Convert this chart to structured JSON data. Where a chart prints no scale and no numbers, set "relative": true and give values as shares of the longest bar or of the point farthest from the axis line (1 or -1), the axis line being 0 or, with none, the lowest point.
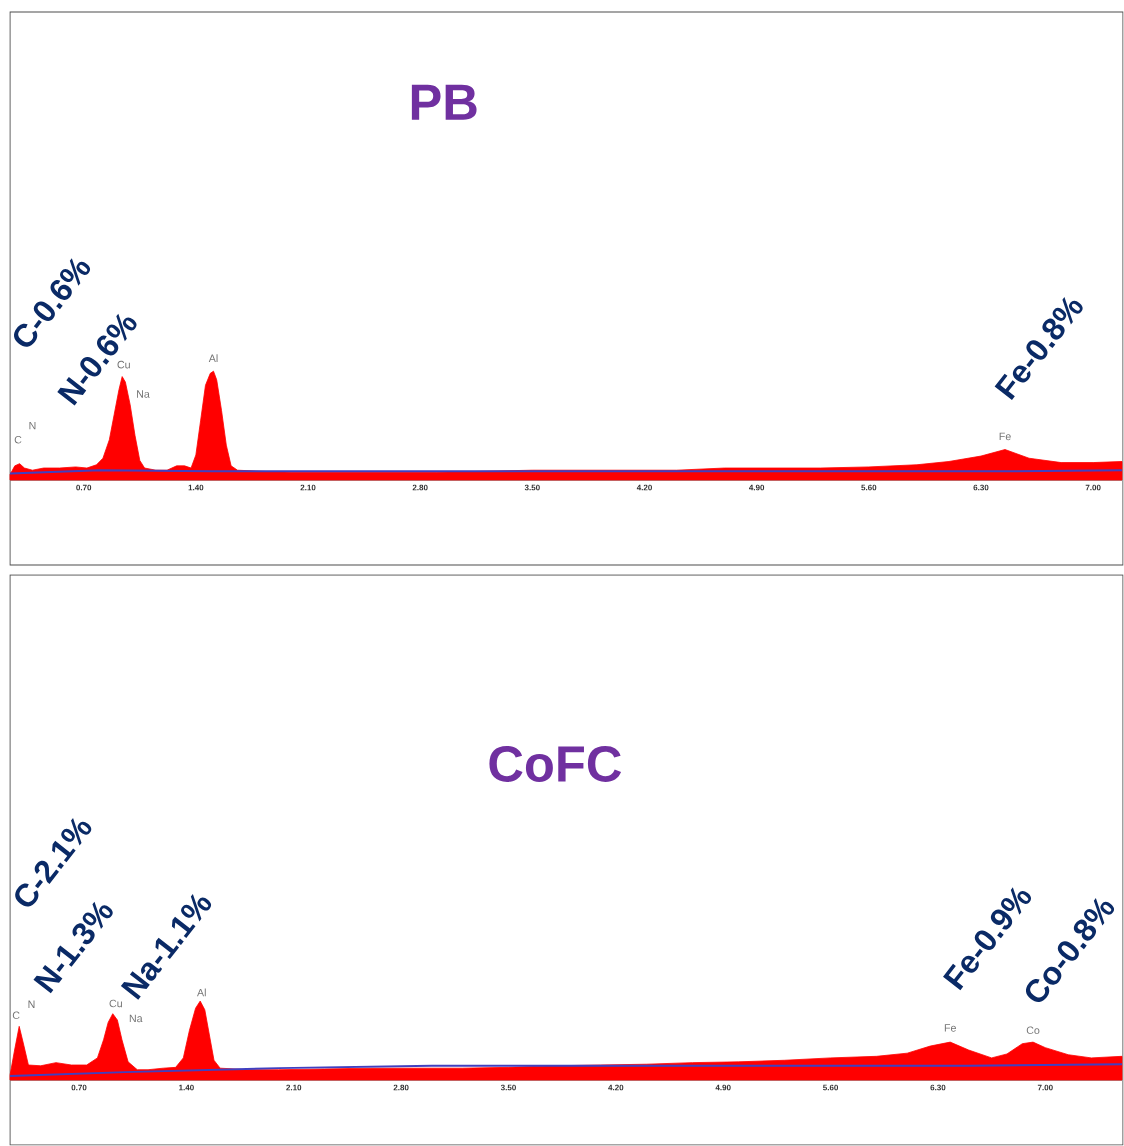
{
  "chart_data": [
    {
      "type": "area",
      "title": "PB",
      "relative": true,
      "xlim": [
        0.24,
        7.18
      ],
      "xticks": [
        {
          "value": 0.7,
          "label": "0.70"
        },
        {
          "value": 1.4,
          "label": "1.40"
        },
        {
          "value": 2.1,
          "label": "2.10"
        },
        {
          "value": 2.8,
          "label": "2.80"
        },
        {
          "value": 3.5,
          "label": "3.50"
        },
        {
          "value": 4.2,
          "label": "4.20"
        },
        {
          "value": 4.9,
          "label": "4.90"
        },
        {
          "value": 5.6,
          "label": "5.60"
        },
        {
          "value": 6.3,
          "label": "6.30"
        },
        {
          "value": 7.0,
          "label": "7.00"
        }
      ],
      "series": [
        {
          "color": "#ff0000",
          "x": [
            0.24,
            0.27,
            0.3,
            0.33,
            0.38,
            0.45,
            0.55,
            0.65,
            0.72,
            0.78,
            0.82,
            0.86,
            0.89,
            0.92,
            0.94,
            0.96,
            0.99,
            1.02,
            1.05,
            1.08,
            1.15,
            1.22,
            1.28,
            1.33,
            1.37,
            1.4,
            1.43,
            1.46,
            1.49,
            1.51,
            1.53,
            1.56,
            1.59,
            1.62,
            1.66,
            1.8,
            2.0,
            2.3,
            2.6,
            2.9,
            3.2,
            3.5,
            3.8,
            4.1,
            4.4,
            4.7,
            5.0,
            5.3,
            5.6,
            5.9,
            6.1,
            6.3,
            6.45,
            6.6,
            6.8,
            7.0,
            7.18
          ],
          "values": [
            0.05,
            0.13,
            0.15,
            0.11,
            0.09,
            0.11,
            0.11,
            0.12,
            0.11,
            0.14,
            0.2,
            0.37,
            0.6,
            0.83,
            0.95,
            0.9,
            0.69,
            0.41,
            0.18,
            0.11,
            0.09,
            0.09,
            0.13,
            0.13,
            0.11,
            0.23,
            0.55,
            0.87,
            0.98,
            1.0,
            0.92,
            0.64,
            0.32,
            0.13,
            0.09,
            0.08,
            0.07,
            0.07,
            0.07,
            0.07,
            0.08,
            0.09,
            0.09,
            0.09,
            0.09,
            0.11,
            0.11,
            0.11,
            0.12,
            0.14,
            0.17,
            0.22,
            0.28,
            0.2,
            0.16,
            0.16,
            0.17
          ]
        },
        {
          "type": "line",
          "color": "#4040c0",
          "x": [
            0.24,
            0.8,
            1.5,
            3.0,
            5.0,
            6.5,
            7.18
          ],
          "values": [
            0.06,
            0.09,
            0.08,
            0.08,
            0.08,
            0.08,
            0.09
          ]
        }
      ],
      "annotations": [
        "C",
        "N",
        "Cu",
        "Na",
        "Al",
        "Fe",
        "C-0.6%",
        "N-0.6%",
        "Fe-0.8%"
      ]
    },
    {
      "type": "area",
      "title": "CoFC",
      "relative": true,
      "xlim": [
        0.25,
        7.5
      ],
      "xticks": [
        {
          "value": 0.7,
          "label": "0.70"
        },
        {
          "value": 1.4,
          "label": "1.40"
        },
        {
          "value": 2.1,
          "label": "2.10"
        },
        {
          "value": 2.8,
          "label": "2.80"
        },
        {
          "value": 3.5,
          "label": "3.50"
        },
        {
          "value": 4.2,
          "label": "4.20"
        },
        {
          "value": 4.9,
          "label": "4.90"
        },
        {
          "value": 5.6,
          "label": "5.60"
        },
        {
          "value": 6.3,
          "label": "6.30"
        },
        {
          "value": 7.0,
          "label": "7.00"
        }
      ],
      "series": [
        {
          "color": "#ff0000",
          "x": [
            0.25,
            0.28,
            0.31,
            0.34,
            0.37,
            0.45,
            0.55,
            0.65,
            0.75,
            0.82,
            0.86,
            0.89,
            0.92,
            0.95,
            0.98,
            1.02,
            1.08,
            1.15,
            1.25,
            1.33,
            1.38,
            1.42,
            1.46,
            1.49,
            1.52,
            1.55,
            1.58,
            1.62,
            1.8,
            2.0,
            2.3,
            2.6,
            2.9,
            3.2,
            3.5,
            3.8,
            4.1,
            4.4,
            4.7,
            5.0,
            5.3,
            5.6,
            5.9,
            6.1,
            6.25,
            6.38,
            6.5,
            6.65,
            6.75,
            6.85,
            6.92,
            7.0,
            7.15,
            7.3,
            7.5
          ],
          "values": [
            0.06,
            0.38,
            0.68,
            0.44,
            0.19,
            0.18,
            0.22,
            0.19,
            0.19,
            0.28,
            0.51,
            0.73,
            0.84,
            0.76,
            0.51,
            0.23,
            0.13,
            0.13,
            0.15,
            0.16,
            0.28,
            0.63,
            0.91,
            1.0,
            0.89,
            0.57,
            0.25,
            0.15,
            0.13,
            0.13,
            0.14,
            0.15,
            0.15,
            0.15,
            0.16,
            0.18,
            0.19,
            0.2,
            0.22,
            0.23,
            0.25,
            0.28,
            0.3,
            0.34,
            0.43,
            0.48,
            0.38,
            0.28,
            0.33,
            0.46,
            0.48,
            0.41,
            0.32,
            0.28,
            0.3
          ]
        },
        {
          "type": "line",
          "color": "#4040c0",
          "x": [
            0.25,
            1.0,
            2.0,
            3.0,
            5.0,
            6.5,
            7.5
          ],
          "values": [
            0.05,
            0.1,
            0.15,
            0.18,
            0.18,
            0.18,
            0.2
          ]
        }
      ],
      "annotations": [
        "C",
        "N",
        "Cu",
        "Na",
        "Al",
        "Fe",
        "Co",
        "C-2.1%",
        "N-1.3%",
        "Na-1.1%",
        "Fe-0.9%",
        "Co-0.8%"
      ]
    }
  ]
}
